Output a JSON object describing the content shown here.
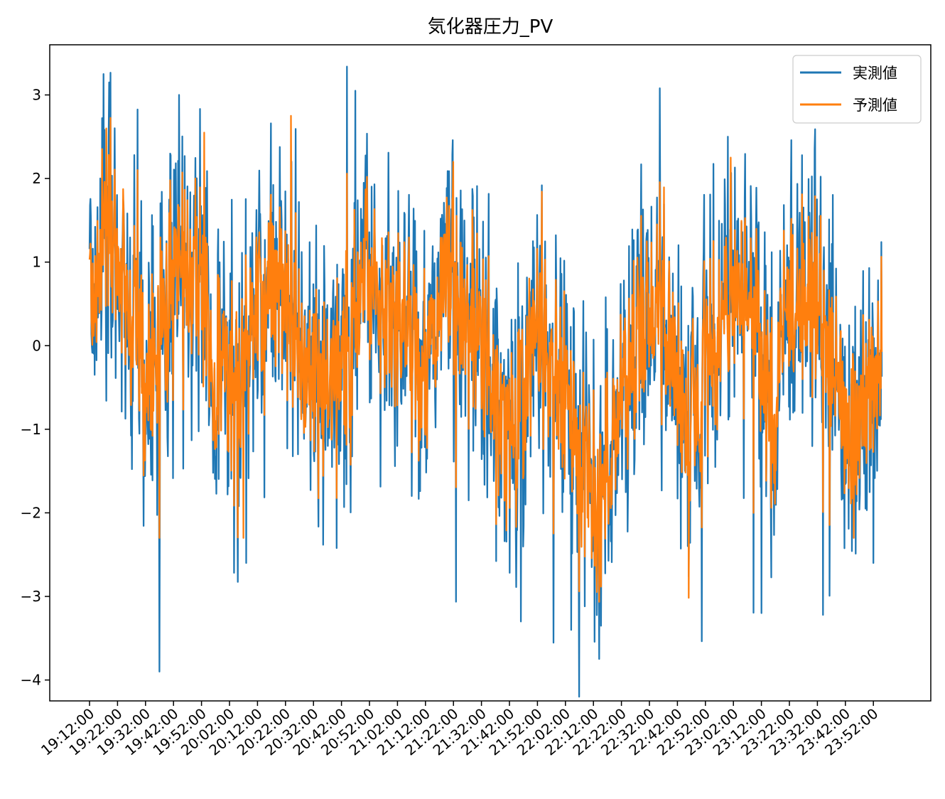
{
  "chart_data": {
    "type": "line",
    "title": "気化器圧力_PV",
    "xlabel": "",
    "ylabel": "",
    "ylim": [
      -4.25,
      3.6
    ],
    "yticks": [
      3,
      2,
      1,
      0,
      -1,
      -2,
      -3,
      -4
    ],
    "ytick_labels": [
      "3",
      "2",
      "1",
      "0",
      "−1",
      "−2",
      "−3",
      "−4"
    ],
    "x_start": "19:12:00",
    "x_end": "23:55:00",
    "xticks": [
      "19:12:00",
      "19:22:00",
      "19:32:00",
      "19:42:00",
      "19:52:00",
      "20:02:00",
      "20:12:00",
      "20:22:00",
      "20:32:00",
      "20:42:00",
      "20:52:00",
      "21:02:00",
      "21:12:00",
      "21:22:00",
      "21:32:00",
      "21:42:00",
      "21:52:00",
      "22:02:00",
      "22:12:00",
      "22:22:00",
      "22:32:00",
      "22:42:00",
      "22:52:00",
      "23:02:00",
      "23:12:00",
      "23:22:00",
      "23:32:00",
      "23:42:00",
      "23:52:00"
    ],
    "legend_position": "top-right",
    "grid": false,
    "series": [
      {
        "name": "実測値",
        "color": "#1f77b4",
        "trend_times": [
          "19:12:00",
          "19:20:00",
          "19:27:00",
          "19:32:00",
          "19:42:00",
          "19:50:00",
          "19:58:00",
          "20:05:00",
          "20:12:00",
          "20:20:00",
          "20:27:00",
          "20:35:00",
          "20:43:00",
          "20:52:00",
          "21:02:00",
          "21:10:00",
          "21:20:00",
          "21:30:00",
          "21:42:00",
          "21:52:00",
          "22:02:00",
          "22:10:00",
          "22:15:00",
          "22:25:00",
          "22:35:00",
          "22:45:00",
          "22:55:00",
          "23:02:00",
          "23:10:00",
          "23:15:00",
          "23:22:00",
          "23:30:00",
          "23:37:00",
          "23:45:00",
          "23:52:00",
          "23:55:00"
        ],
        "trend_values": [
          0.4,
          1.4,
          0.6,
          -0.4,
          0.8,
          0.7,
          -0.2,
          -0.6,
          0.5,
          0.9,
          -0.1,
          -0.5,
          -0.2,
          0.8,
          0.3,
          -0.4,
          0.7,
          0.2,
          -1.1,
          0.1,
          -0.6,
          -1.6,
          -1.8,
          -0.2,
          0.5,
          -0.8,
          -0.2,
          0.6,
          0.2,
          -0.8,
          0.6,
          0.5,
          -0.1,
          -0.9,
          -0.4,
          0.0
        ],
        "noise_amplitude": 0.85,
        "spike_amplitude": 1.5,
        "extremes": [
          {
            "time": "19:17:00",
            "value": 3.25
          },
          {
            "time": "19:19:00",
            "value": 3.15
          },
          {
            "time": "19:37:00",
            "value": -3.9
          },
          {
            "time": "19:44:00",
            "value": 3.0
          },
          {
            "time": "20:08:00",
            "value": -2.6
          },
          {
            "time": "20:47:00",
            "value": 3.05
          },
          {
            "time": "21:46:00",
            "value": -3.3
          },
          {
            "time": "22:04:00",
            "value": -3.4
          },
          {
            "time": "23:00:00",
            "value": 2.5
          },
          {
            "time": "23:12:00",
            "value": -3.2
          },
          {
            "time": "23:52:00",
            "value": -2.6
          }
        ]
      },
      {
        "name": "予測値",
        "color": "#ff7f0e",
        "relation": "smoothed prediction tracking 実測値 with smaller amplitude",
        "noise_amplitude": 0.55,
        "spike_amplitude": 0.9,
        "extremes": [
          {
            "time": "19:18:00",
            "value": 2.6
          },
          {
            "time": "19:37:00",
            "value": -2.3
          },
          {
            "time": "19:53:00",
            "value": 2.55
          },
          {
            "time": "20:07:00",
            "value": -2.3
          },
          {
            "time": "20:24:00",
            "value": 2.75
          },
          {
            "time": "21:22:00",
            "value": 2.2
          },
          {
            "time": "22:13:00",
            "value": -2.7
          },
          {
            "time": "23:01:00",
            "value": 2.25
          },
          {
            "time": "23:45:00",
            "value": -2.3
          }
        ]
      }
    ]
  }
}
